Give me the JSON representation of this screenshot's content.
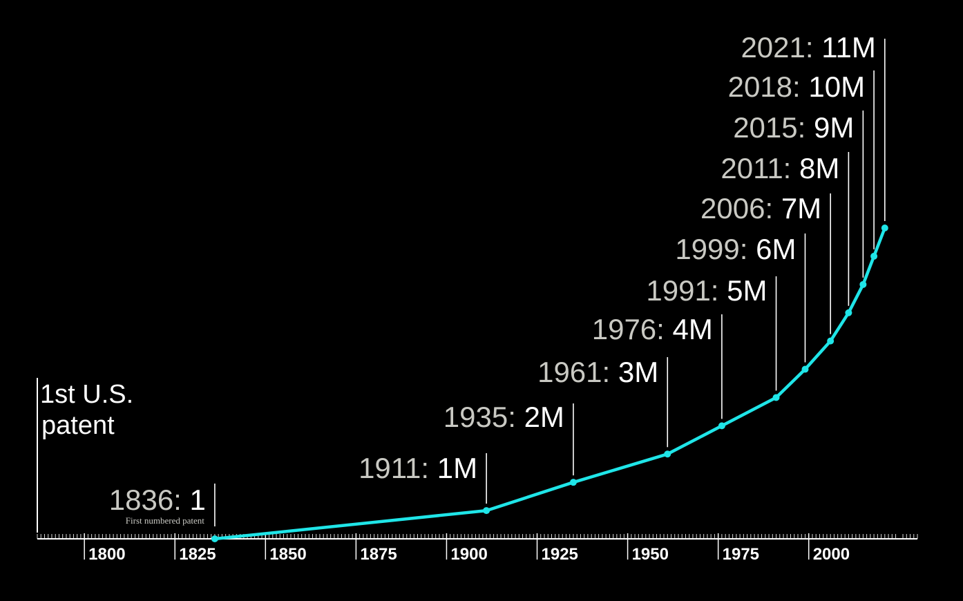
{
  "colors": {
    "background": "#000000",
    "line": "#1fe5e8",
    "marker": "#1fe5e8",
    "year_text": "#c9c9c3",
    "value_text": "#ffffff",
    "rule": "#ffffff",
    "axis": "#ffffff"
  },
  "title": {
    "line1": "1st U.S.",
    "line2": "patent"
  },
  "chart_data": {
    "type": "line",
    "xlim": [
      1787,
      2030
    ],
    "ylim": [
      0,
      11000000
    ],
    "x_ticks": [
      "1800",
      "1825",
      "1850",
      "1875",
      "1900",
      "1925",
      "1950",
      "1975",
      "2000"
    ],
    "grid": false,
    "legend": "none",
    "series": [
      {
        "points": [
          {
            "x": 1836,
            "y": 1
          },
          {
            "x": 1911,
            "y": 1000000
          },
          {
            "x": 1935,
            "y": 2000000
          },
          {
            "x": 1961,
            "y": 3000000
          },
          {
            "x": 1976,
            "y": 4000000
          },
          {
            "x": 1991,
            "y": 5000000
          },
          {
            "x": 1999,
            "y": 6000000
          },
          {
            "x": 2006,
            "y": 7000000
          },
          {
            "x": 2011,
            "y": 8000000
          },
          {
            "x": 2015,
            "y": 9000000
          },
          {
            "x": 2018,
            "y": 10000000
          },
          {
            "x": 2021,
            "y": 11000000
          }
        ]
      }
    ],
    "annotations": [
      {
        "year": "1836:",
        "value": "1",
        "note": "First numbered patent"
      },
      {
        "year": "1911:",
        "value": "1M"
      },
      {
        "year": "1935:",
        "value": "2M"
      },
      {
        "year": "1961:",
        "value": "3M"
      },
      {
        "year": "1976:",
        "value": "4M"
      },
      {
        "year": "1991:",
        "value": "5M"
      },
      {
        "year": "1999:",
        "value": "6M"
      },
      {
        "year": "2006:",
        "value": "7M"
      },
      {
        "year": "2011:",
        "value": "8M"
      },
      {
        "year": "2015:",
        "value": "9M"
      },
      {
        "year": "2018:",
        "value": "10M"
      },
      {
        "year": "2021:",
        "value": "11M"
      }
    ]
  }
}
